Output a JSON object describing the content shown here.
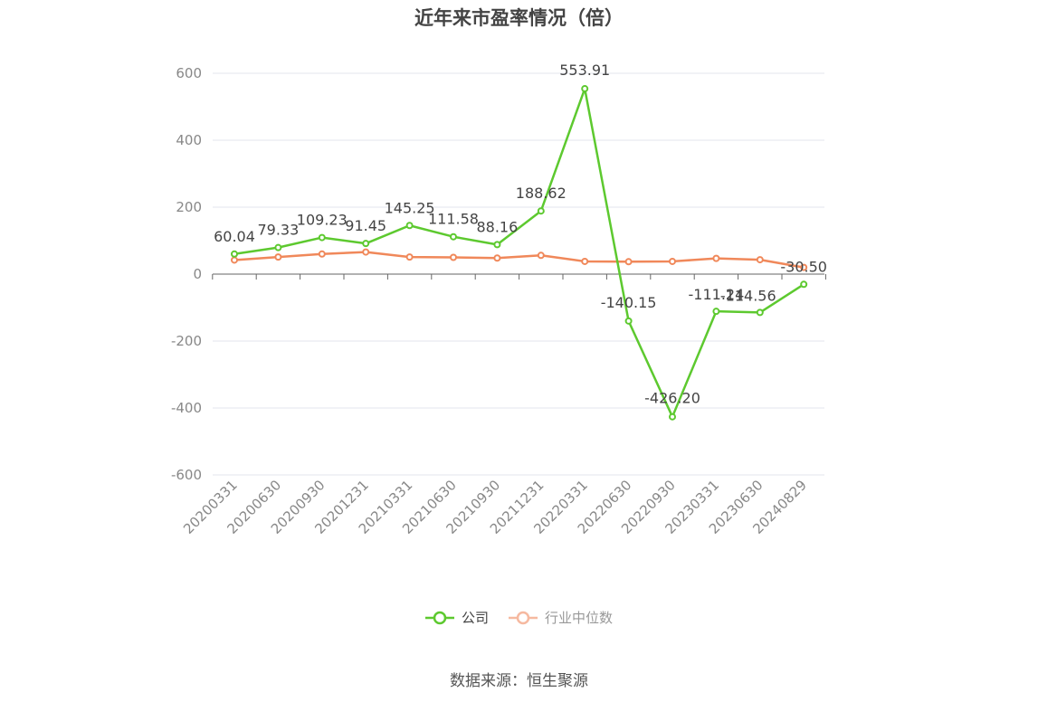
{
  "title": "近年来市盈率情况（倍）",
  "source": "数据来源：恒生聚源",
  "chart_data": {
    "type": "line",
    "title": "近年来市盈率情况（倍）",
    "categories": [
      "20200331",
      "20200630",
      "20200930",
      "20201231",
      "20210331",
      "20210630",
      "20210930",
      "20211231",
      "20220331",
      "20220630",
      "20220930",
      "20230331",
      "20230630",
      "20240829"
    ],
    "y_ticks": [
      600,
      400,
      200,
      0,
      -200,
      -400,
      -600
    ],
    "ylim": [
      -600,
      600
    ],
    "grid": true,
    "legend_position": "bottom",
    "series": [
      {
        "name": "公司",
        "color": "#5dc92f",
        "values": [
          60.04,
          79.33,
          109.23,
          91.45,
          145.25,
          111.58,
          88.16,
          188.62,
          553.91,
          -140.15,
          -426.2,
          -111.24,
          -114.56,
          -30.5
        ],
        "labels": [
          "60.04",
          "79.33",
          "109.23",
          "91.45",
          "145.25",
          "111.58",
          "88.16",
          "188.62",
          "553.91",
          "-140.15",
          "-426.20",
          "-111.24",
          "-114.56",
          "-30.50"
        ]
      },
      {
        "name": "行业中位数",
        "color": "#f0885a",
        "values": [
          42,
          51,
          60,
          66,
          51,
          50,
          48,
          56,
          38,
          37,
          38,
          47,
          43,
          20
        ]
      }
    ]
  }
}
